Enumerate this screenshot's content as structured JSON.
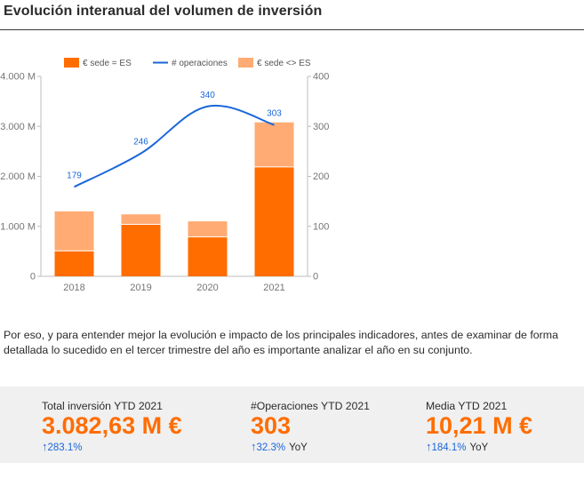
{
  "page": {
    "title": "Evolución interanual del volumen de inversión",
    "paragraph": "Por eso, y para entender mejor la evolución e impacto de los principales indicadores, antes de examinar de forma detallada lo sucedido en el tercer trimestre del año es importante analizar el año en su conjunto."
  },
  "chart_data": {
    "type": "bar",
    "stacked": true,
    "categories": [
      "2018",
      "2019",
      "2020",
      "2021"
    ],
    "series": [
      {
        "name": "€ sede = ES",
        "kind": "bar",
        "axis": "left",
        "color": "#ff6d00",
        "values": [
          510,
          1040,
          790,
          2190
        ]
      },
      {
        "name": "€ sede <> ES",
        "kind": "bar",
        "axis": "left",
        "color": "#ffab73",
        "values": [
          790,
          200,
          310,
          890
        ]
      },
      {
        "name": "# operaciones",
        "kind": "line",
        "axis": "right",
        "color": "#1a66d9",
        "values": [
          179,
          246,
          340,
          303
        ],
        "labels": [
          "179",
          "246",
          "340",
          "303"
        ]
      }
    ],
    "left_axis": {
      "min": 0,
      "max": 4000,
      "ticks": [
        0,
        1000,
        2000,
        3000,
        4000
      ],
      "tick_labels": [
        "0",
        "1.000 M",
        "2.000 M",
        "3.000 M",
        "4.000 M"
      ]
    },
    "right_axis": {
      "min": 0,
      "max": 400,
      "ticks": [
        0,
        100,
        200,
        300,
        400
      ],
      "tick_labels": [
        "0",
        "100",
        "200",
        "300",
        "400"
      ]
    },
    "legend_position": "top",
    "grid": false
  },
  "kpis": [
    {
      "label": "Total inversión YTD 2021",
      "value": "3.082,63 M €",
      "arrow": "↑",
      "delta": "283.1%",
      "suffix": ""
    },
    {
      "label": "#Operaciones YTD 2021",
      "value": "303",
      "arrow": "↑",
      "delta": "32.3%",
      "suffix": "YoY"
    },
    {
      "label": "Media YTD 2021",
      "value": "10,21 M €",
      "arrow": "↑",
      "delta": "184.1%",
      "suffix": "YoY"
    }
  ]
}
